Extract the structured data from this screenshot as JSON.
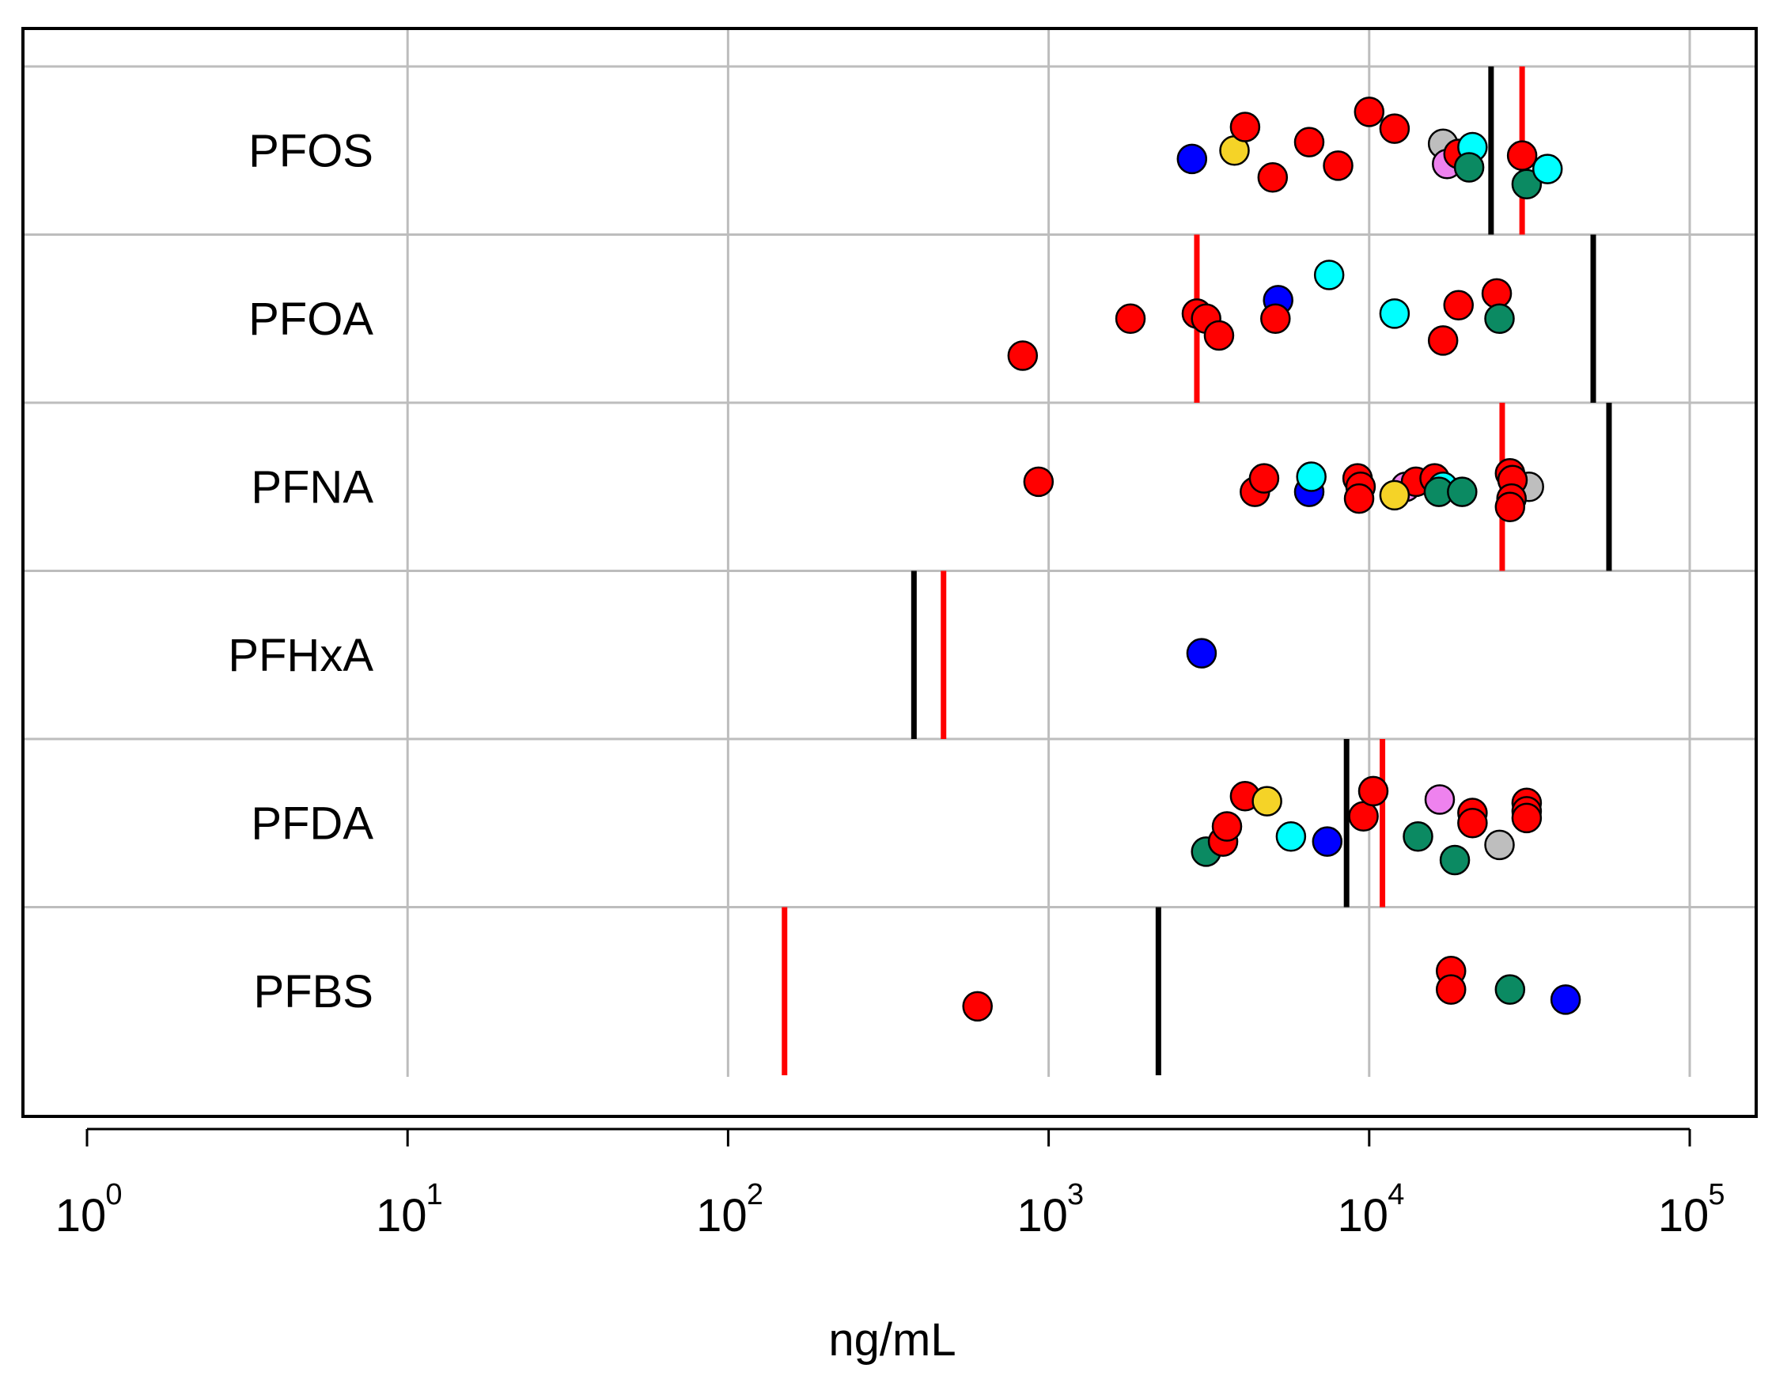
{
  "chart_data": {
    "type": "scatter",
    "title": "",
    "xlabel": "ng/mL",
    "ylabel": "",
    "xscale": "log10",
    "xlim": [
      1,
      100000
    ],
    "grid": true,
    "x_ticks": [
      {
        "value": 1,
        "base": "10",
        "exp": "0"
      },
      {
        "value": 10,
        "base": "10",
        "exp": "1"
      },
      {
        "value": 100,
        "base": "10",
        "exp": "2"
      },
      {
        "value": 1000,
        "base": "10",
        "exp": "3"
      },
      {
        "value": 10000,
        "base": "10",
        "exp": "4"
      },
      {
        "value": 100000,
        "base": "10",
        "exp": "5"
      }
    ],
    "colors": {
      "red": "#ff0000",
      "blue": "#0000ff",
      "yellow": "#f5d327",
      "cyan": "#00ffff",
      "green": "#0b8a62",
      "gray": "#bebebe",
      "violet": "#ee82ee",
      "black": "#000000"
    },
    "categories": [
      {
        "name": "PFOS",
        "black_line": 24000,
        "red_line": 30000,
        "points": [
          {
            "x": 2800,
            "o": 0.05,
            "c": "blue"
          },
          {
            "x": 3800,
            "o": 0.0,
            "c": "yellow"
          },
          {
            "x": 4100,
            "o": -0.14,
            "c": "red"
          },
          {
            "x": 5000,
            "o": 0.16,
            "c": "red"
          },
          {
            "x": 6500,
            "o": -0.05,
            "c": "red"
          },
          {
            "x": 8000,
            "o": 0.09,
            "c": "red"
          },
          {
            "x": 10000,
            "o": -0.23,
            "c": "red"
          },
          {
            "x": 12000,
            "o": -0.13,
            "c": "red"
          },
          {
            "x": 17000,
            "o": -0.04,
            "c": "gray"
          },
          {
            "x": 17500,
            "o": 0.08,
            "c": "violet"
          },
          {
            "x": 19000,
            "o": 0.02,
            "c": "red"
          },
          {
            "x": 21000,
            "o": -0.02,
            "c": "cyan"
          },
          {
            "x": 20500,
            "o": 0.1,
            "c": "green"
          },
          {
            "x": 30000,
            "o": 0.03,
            "c": "red"
          },
          {
            "x": 31000,
            "o": 0.2,
            "c": "green"
          },
          {
            "x": 36000,
            "o": 0.11,
            "c": "cyan"
          }
        ]
      },
      {
        "name": "PFOA",
        "black_line": 50000,
        "red_line": 2900,
        "points": [
          {
            "x": 830,
            "o": 0.22,
            "c": "red"
          },
          {
            "x": 1800,
            "o": 0.0,
            "c": "red"
          },
          {
            "x": 2900,
            "o": -0.03,
            "c": "red"
          },
          {
            "x": 3100,
            "o": 0.0,
            "c": "red"
          },
          {
            "x": 3400,
            "o": 0.1,
            "c": "red"
          },
          {
            "x": 5200,
            "o": -0.11,
            "c": "blue"
          },
          {
            "x": 5100,
            "o": 0.0,
            "c": "red"
          },
          {
            "x": 7500,
            "o": -0.26,
            "c": "cyan"
          },
          {
            "x": 12000,
            "o": -0.03,
            "c": "cyan"
          },
          {
            "x": 17000,
            "o": 0.13,
            "c": "red"
          },
          {
            "x": 19000,
            "o": -0.08,
            "c": "red"
          },
          {
            "x": 25000,
            "o": -0.15,
            "c": "red"
          },
          {
            "x": 25500,
            "o": 0.0,
            "c": "green"
          }
        ]
      },
      {
        "name": "PFNA",
        "black_line": 56000,
        "red_line": 26000,
        "points": [
          {
            "x": 930,
            "o": -0.03,
            "c": "red"
          },
          {
            "x": 4400,
            "o": 0.03,
            "c": "red"
          },
          {
            "x": 4700,
            "o": -0.05,
            "c": "red"
          },
          {
            "x": 6500,
            "o": 0.03,
            "c": "blue"
          },
          {
            "x": 6600,
            "o": -0.06,
            "c": "cyan"
          },
          {
            "x": 9200,
            "o": -0.05,
            "c": "red"
          },
          {
            "x": 9400,
            "o": 0.0,
            "c": "red"
          },
          {
            "x": 9300,
            "o": 0.07,
            "c": "red"
          },
          {
            "x": 13000,
            "o": 0.0,
            "c": "violet"
          },
          {
            "x": 14000,
            "o": -0.03,
            "c": "red"
          },
          {
            "x": 12000,
            "o": 0.05,
            "c": "yellow"
          },
          {
            "x": 16000,
            "o": -0.05,
            "c": "red"
          },
          {
            "x": 17000,
            "o": 0.0,
            "c": "cyan"
          },
          {
            "x": 16500,
            "o": 0.03,
            "c": "green"
          },
          {
            "x": 19500,
            "o": 0.03,
            "c": "green"
          },
          {
            "x": 27500,
            "o": -0.08,
            "c": "red"
          },
          {
            "x": 31500,
            "o": 0.0,
            "c": "gray"
          },
          {
            "x": 28000,
            "o": -0.04,
            "c": "red"
          },
          {
            "x": 27800,
            "o": 0.07,
            "c": "red"
          },
          {
            "x": 27500,
            "o": 0.12,
            "c": "red"
          }
        ]
      },
      {
        "name": "PFHxA",
        "black_line": 380,
        "red_line": 470,
        "points": [
          {
            "x": 3000,
            "o": -0.01,
            "c": "blue"
          }
        ]
      },
      {
        "name": "PFDA",
        "black_line": 8500,
        "red_line": 11000,
        "points": [
          {
            "x": 3100,
            "o": 0.17,
            "c": "green"
          },
          {
            "x": 3500,
            "o": 0.11,
            "c": "red"
          },
          {
            "x": 3600,
            "o": 0.02,
            "c": "red"
          },
          {
            "x": 4100,
            "o": -0.16,
            "c": "red"
          },
          {
            "x": 4800,
            "o": -0.13,
            "c": "yellow"
          },
          {
            "x": 5700,
            "o": 0.08,
            "c": "cyan"
          },
          {
            "x": 7400,
            "o": 0.11,
            "c": "blue"
          },
          {
            "x": 9600,
            "o": -0.04,
            "c": "red"
          },
          {
            "x": 10300,
            "o": -0.19,
            "c": "red"
          },
          {
            "x": 14200,
            "o": 0.08,
            "c": "green"
          },
          {
            "x": 16600,
            "o": -0.14,
            "c": "violet"
          },
          {
            "x": 18500,
            "o": 0.22,
            "c": "green"
          },
          {
            "x": 21000,
            "o": -0.06,
            "c": "red"
          },
          {
            "x": 21000,
            "o": 0.0,
            "c": "red"
          },
          {
            "x": 25500,
            "o": 0.13,
            "c": "gray"
          },
          {
            "x": 31000,
            "o": -0.12,
            "c": "red"
          },
          {
            "x": 31000,
            "o": -0.07,
            "c": "red"
          },
          {
            "x": 31000,
            "o": -0.03,
            "c": "red"
          }
        ]
      },
      {
        "name": "PFBS",
        "black_line": 2200,
        "red_line": 150,
        "points": [
          {
            "x": 600,
            "o": 0.09,
            "c": "red"
          },
          {
            "x": 18000,
            "o": -0.12,
            "c": "red"
          },
          {
            "x": 18000,
            "o": -0.01,
            "c": "red"
          },
          {
            "x": 27500,
            "o": -0.01,
            "c": "green"
          },
          {
            "x": 41000,
            "o": 0.05,
            "c": "blue"
          }
        ]
      }
    ]
  }
}
